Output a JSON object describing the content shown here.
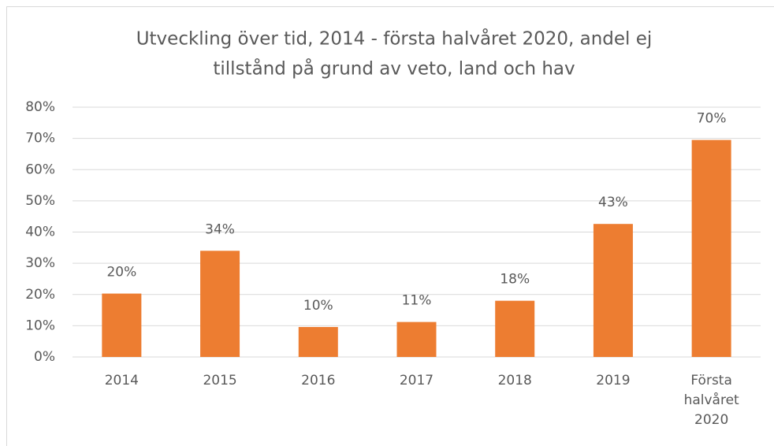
{
  "chart_data": {
    "type": "bar",
    "title": [
      "Utveckling över tid, 2014 - första halvåret 2020, andel ej",
      "tillstånd på grund av veto, land och hav"
    ],
    "categories": [
      "2014",
      "2015",
      "2016",
      "2017",
      "2018",
      "2019",
      "Första halvåret 2020"
    ],
    "values": [
      20.3,
      34,
      9.6,
      11.2,
      18,
      42.6,
      69.5
    ],
    "value_labels": [
      "20%",
      "34%",
      "10%",
      "11%",
      "18%",
      "43%",
      "70%"
    ],
    "color": "#ed7d31",
    "ylim": [
      0,
      80
    ],
    "yticks": [
      {
        "value": 0,
        "label": "0%"
      },
      {
        "value": 10,
        "label": "10%"
      },
      {
        "value": 20,
        "label": "20%"
      },
      {
        "value": 30,
        "label": "30%"
      },
      {
        "value": 40,
        "label": "40%"
      },
      {
        "value": 50,
        "label": "50%"
      },
      {
        "value": 60,
        "label": "60%"
      },
      {
        "value": 70,
        "label": "70%"
      },
      {
        "value": 80,
        "label": "80%"
      }
    ],
    "grid": true
  }
}
